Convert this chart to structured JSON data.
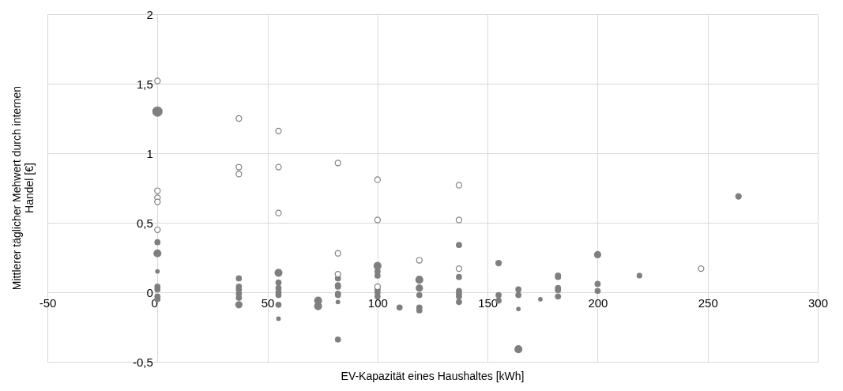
{
  "chart_data": {
    "type": "bubble",
    "xlabel": "EV-Kapazität eines Haushaltes [kWh]",
    "ylabel": "Mittlerer täglicher Mehwert durch internen Handel [€]",
    "xlim": [
      -50,
      300
    ],
    "xticks": [
      -50,
      0,
      50,
      100,
      150,
      200,
      250,
      300
    ],
    "ylim": [
      -0.5,
      2
    ],
    "yticks": [
      {
        "value": -0.5,
        "label": "-0,5"
      },
      0,
      {
        "value": 0.5,
        "label": "0,5"
      },
      1,
      {
        "value": 1.5,
        "label": "1,5"
      },
      2
    ],
    "grid": true,
    "marker": "circle",
    "series": [
      {
        "type": "bubble",
        "color": "#7f7f7f",
        "x": [
          0,
          0,
          0,
          0,
          0,
          0,
          0,
          0,
          37,
          37,
          37,
          37,
          37,
          37,
          55,
          55,
          55,
          55,
          55,
          55,
          55,
          73,
          73,
          82,
          82,
          82,
          82,
          82,
          82,
          82,
          100,
          100,
          100,
          100,
          100,
          100,
          110,
          119,
          119,
          119,
          119,
          119,
          137,
          137,
          137,
          137,
          137,
          137,
          155,
          155,
          155,
          164,
          164,
          164,
          164,
          174,
          182,
          182,
          182,
          182,
          182,
          200,
          200,
          200,
          219,
          264
        ],
        "values": [
          1.3,
          0.36,
          0.28,
          0.15,
          0.04,
          0.02,
          -0.03,
          -0.05,
          0.1,
          0.04,
          0.02,
          -0.01,
          -0.04,
          -0.09,
          0.14,
          0.07,
          0.03,
          0.0,
          -0.02,
          -0.09,
          -0.19,
          -0.06,
          -0.1,
          0.1,
          0.05,
          0.04,
          -0.01,
          -0.02,
          -0.07,
          -0.34,
          0.19,
          0.15,
          0.12,
          0.02,
          0.0,
          -0.03,
          -0.11,
          0.09,
          0.03,
          -0.02,
          -0.11,
          -0.13,
          0.34,
          0.11,
          0.01,
          -0.01,
          -0.03,
          -0.07,
          0.21,
          -0.02,
          -0.06,
          0.02,
          -0.02,
          -0.12,
          -0.41,
          -0.05,
          0.12,
          0.11,
          0.03,
          0.015,
          -0.03,
          0.27,
          0.06,
          0.01,
          0.12,
          0.69
        ],
        "sizes": [
          1,
          0.35,
          0.6,
          0.2,
          0.35,
          0.35,
          0.35,
          0.35,
          0.35,
          0.35,
          0.35,
          0.35,
          0.35,
          0.5,
          0.6,
          0.35,
          0.35,
          0.35,
          0.35,
          0.35,
          0.2,
          0.6,
          0.6,
          0.35,
          0.35,
          0.35,
          0.35,
          0.35,
          0.2,
          0.35,
          0.6,
          0.35,
          0.35,
          0.35,
          0.35,
          0.35,
          0.35,
          0.6,
          0.5,
          0.35,
          0.35,
          0.35,
          0.35,
          0.35,
          0.35,
          0.35,
          0.35,
          0.35,
          0.4,
          0.35,
          0.35,
          0.35,
          0.35,
          0.2,
          0.6,
          0.2,
          0.35,
          0.35,
          0.35,
          0.35,
          0.35,
          0.5,
          0.35,
          0.35,
          0.3,
          0.4
        ]
      },
      {
        "type": "scatter",
        "color": "#7f7f7f",
        "x": [
          0,
          0,
          0,
          0,
          0,
          37,
          37,
          37,
          55,
          55,
          55,
          82,
          82,
          82,
          100,
          100,
          100,
          119,
          137,
          137,
          137,
          247
        ],
        "values": [
          1.52,
          0.73,
          0.68,
          0.65,
          0.45,
          1.25,
          0.9,
          0.85,
          1.16,
          0.9,
          0.57,
          0.93,
          0.28,
          0.13,
          0.81,
          0.52,
          0.04,
          0.23,
          0.77,
          0.52,
          0.17,
          0.17
        ]
      }
    ]
  }
}
